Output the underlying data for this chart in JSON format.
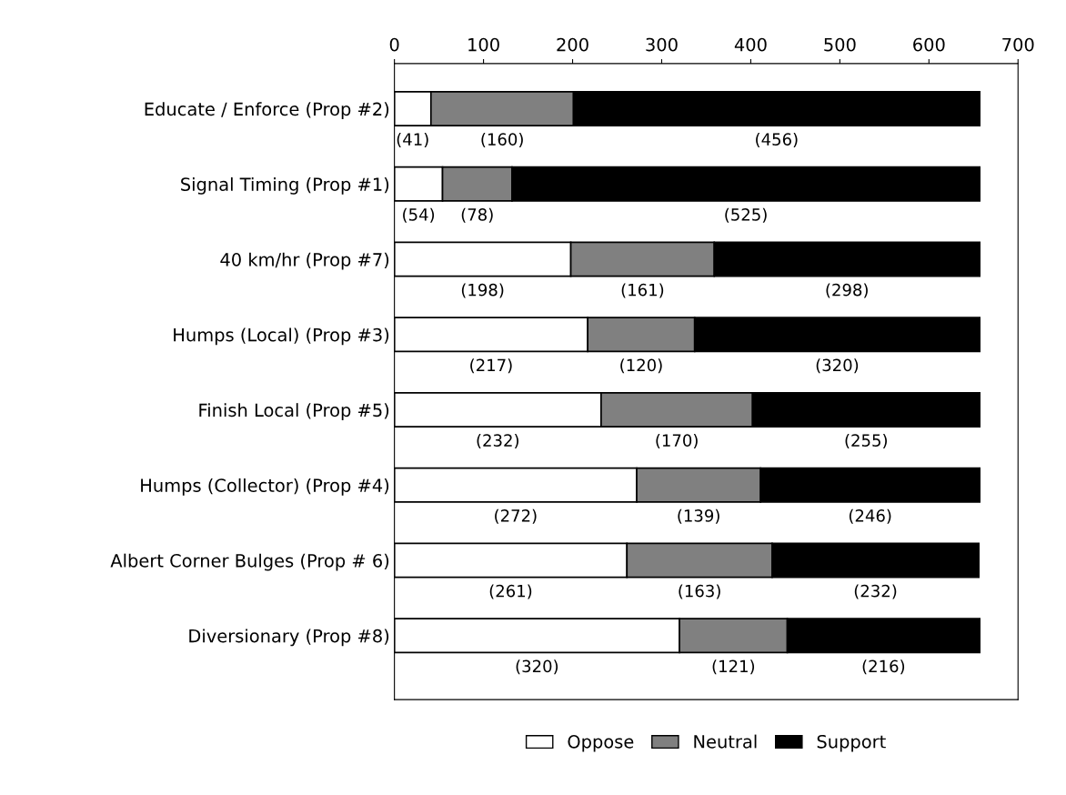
{
  "chart_data": {
    "type": "bar",
    "orientation": "horizontal",
    "stacked": true,
    "categories": [
      "Educate / Enforce (Prop #2)",
      "Signal Timing (Prop #1)",
      "40 km/hr (Prop #7)",
      "Humps (Local) (Prop #3)",
      "Finish Local (Prop #5)",
      "Humps (Collector) (Prop #4)",
      "Albert Corner Bulges (Prop # 6)",
      "Diversionary (Prop #8)"
    ],
    "series": [
      {
        "name": "Oppose",
        "color": "#ffffff",
        "values": [
          41,
          54,
          198,
          217,
          232,
          272,
          261,
          320
        ],
        "value_labels": [
          "(41)",
          "(54)",
          "(198)",
          "(217)",
          "(232)",
          "(272)",
          "(261)",
          "(320)"
        ]
      },
      {
        "name": "Neutral",
        "color": "#808080",
        "values": [
          160,
          78,
          161,
          120,
          170,
          139,
          163,
          121
        ],
        "value_labels": [
          "(160)",
          "(78)",
          "(161)",
          "(120)",
          "(170)",
          "(139)",
          "(163)",
          "(121)"
        ]
      },
      {
        "name": "Support",
        "color": "#000000",
        "values": [
          456,
          525,
          298,
          320,
          255,
          246,
          232,
          216
        ],
        "value_labels": [
          "(456)",
          "(525)",
          "(298)",
          "(320)",
          "(255)",
          "(246)",
          "(232)",
          "(216)"
        ]
      }
    ],
    "xlim": [
      0,
      700
    ],
    "xticks": [
      0,
      100,
      200,
      300,
      400,
      500,
      600,
      700
    ],
    "legend": "bottom",
    "grid": false
  }
}
